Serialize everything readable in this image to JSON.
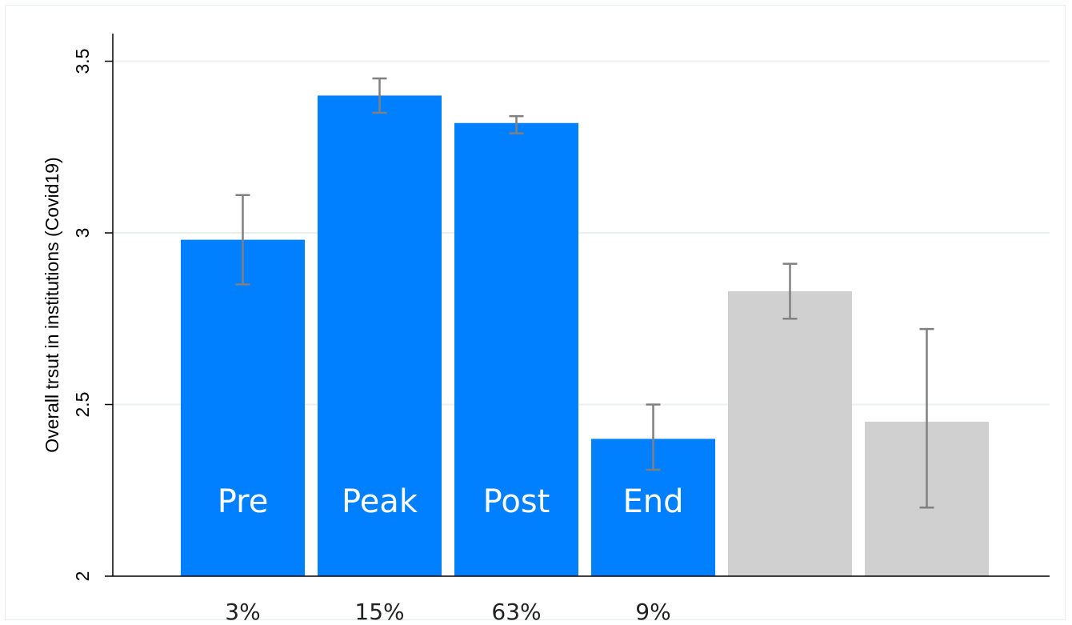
{
  "chart_data": {
    "type": "bar",
    "ylabel": "Overall trsut in institutions (Covid19)",
    "xlabel": "",
    "ylim": [
      2,
      3.6
    ],
    "yticks": [
      {
        "value": 2,
        "label": "2"
      },
      {
        "value": 2.5,
        "label": "2.5"
      },
      {
        "value": 3,
        "label": "3"
      },
      {
        "value": 3.5,
        "label": "3.5"
      }
    ],
    "grid": true,
    "bars": [
      {
        "label": "Pre",
        "pct": "3%",
        "value": 2.98,
        "ci_low": 2.85,
        "ci_high": 3.11,
        "color": "#0080ff"
      },
      {
        "label": "Peak",
        "pct": "15%",
        "value": 3.4,
        "ci_low": 3.35,
        "ci_high": 3.45,
        "color": "#0080ff"
      },
      {
        "label": "Post",
        "pct": "63%",
        "value": 3.32,
        "ci_low": 3.29,
        "ci_high": 3.34,
        "color": "#0080ff"
      },
      {
        "label": "End",
        "pct": "9%",
        "value": 2.4,
        "ci_low": 2.31,
        "ci_high": 2.5,
        "color": "#0080ff"
      },
      {
        "label": "",
        "pct": "",
        "value": 2.83,
        "ci_low": 2.75,
        "ci_high": 2.91,
        "color": "#d0d0d0"
      },
      {
        "label": "",
        "pct": "",
        "value": 2.45,
        "ci_low": 2.2,
        "ci_high": 2.72,
        "color": "#d0d0d0"
      }
    ],
    "colors": {
      "highlight": "#0080ff",
      "muted": "#d0d0d0",
      "errorbar": "#808080",
      "grid": "#e8f0f0"
    }
  }
}
